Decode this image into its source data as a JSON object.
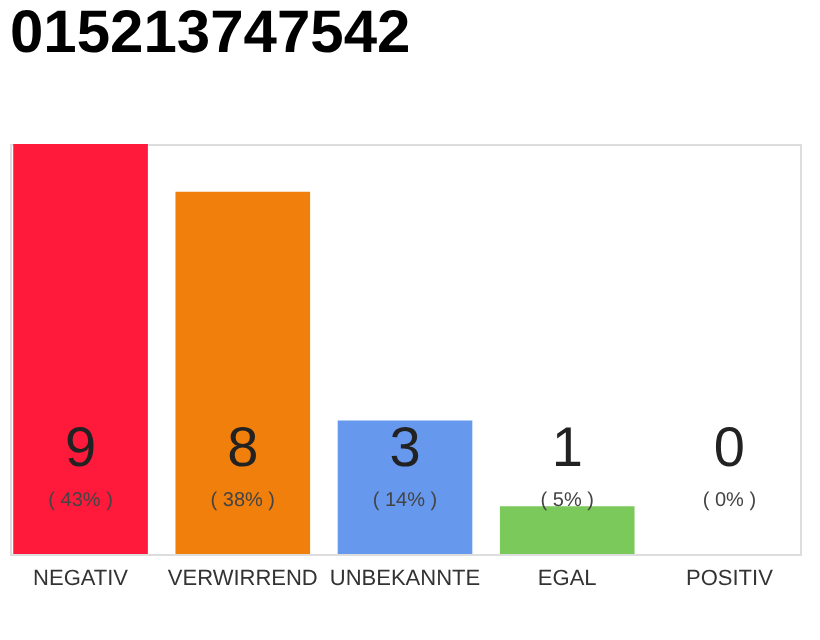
{
  "chart_data": {
    "type": "bar",
    "title": "015213747542",
    "categories": [
      "NEGATIV",
      "VERWIRREND",
      "UNBEKANNTE",
      "EGAL",
      "POSITIV"
    ],
    "values": [
      43,
      38,
      14,
      5,
      0
    ],
    "colors": [
      "#ff1a3c",
      "#f07f0c",
      "#6699ee",
      "#7ac95a",
      "#22aa44"
    ],
    "value_labels": [
      "( 43% )",
      "( 38% )",
      "( 14% )",
      "( 5% )",
      "( 0% )"
    ],
    "tick_labels": "x",
    "annotations": [
      "9",
      "8",
      "3",
      "1",
      "0"
    ]
  }
}
